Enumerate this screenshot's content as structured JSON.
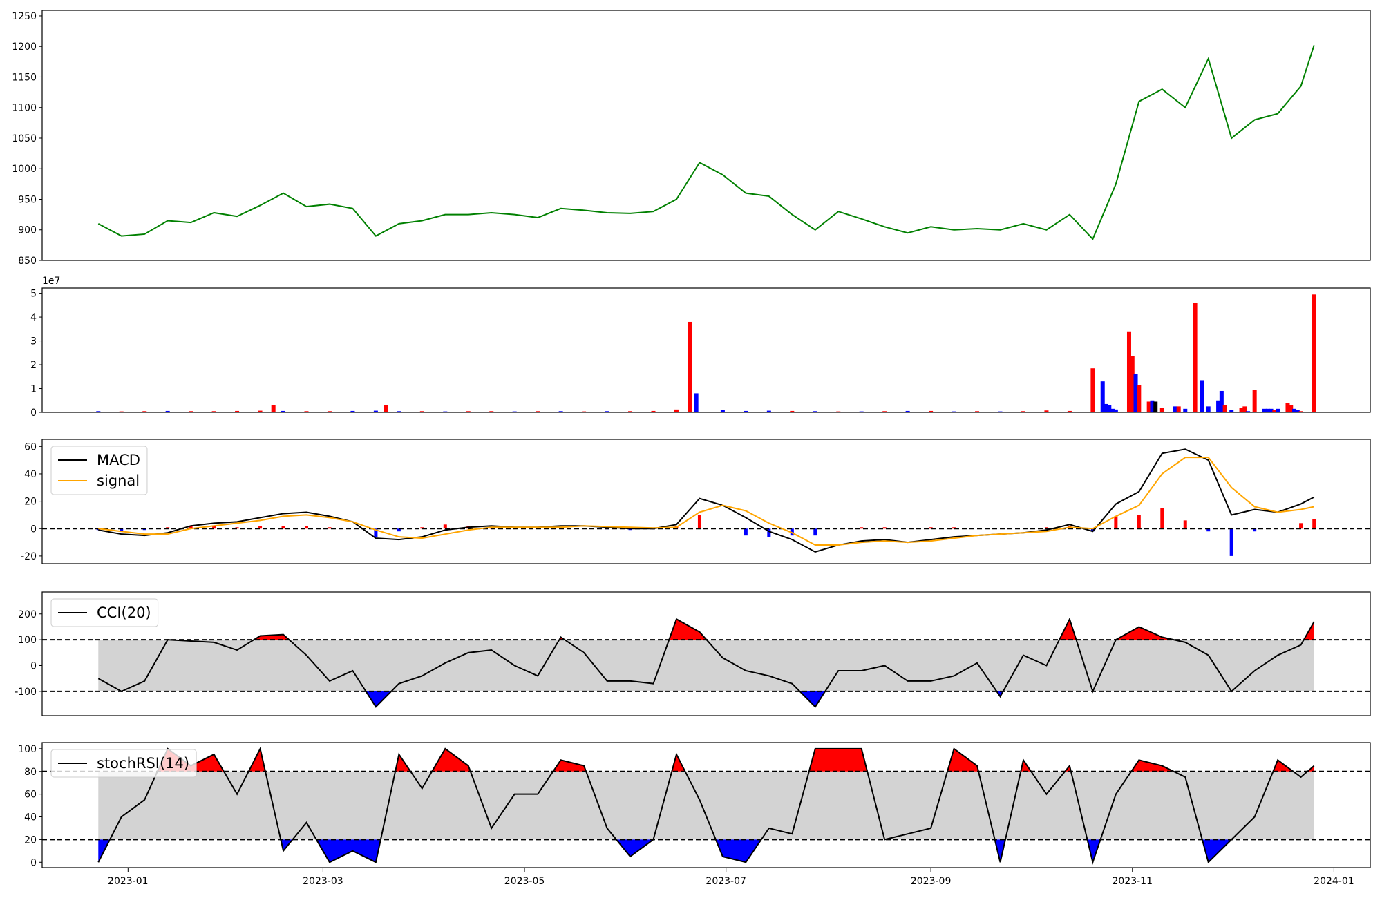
{
  "chart_data": [
    {
      "type": "line",
      "xlim": [
        "2022-12-06",
        "2024-01-12"
      ],
      "ylim": [
        850,
        1259
      ],
      "yticks": [
        850,
        900,
        950,
        1000,
        1050,
        1100,
        1150,
        1200,
        1250
      ],
      "x": [
        "2022-12-23",
        "2022-12-30",
        "2023-01-06",
        "2023-01-13",
        "2023-01-20",
        "2023-01-27",
        "2023-02-03",
        "2023-02-10",
        "2023-02-17",
        "2023-02-24",
        "2023-03-03",
        "2023-03-10",
        "2023-03-17",
        "2023-03-24",
        "2023-03-31",
        "2023-04-07",
        "2023-04-14",
        "2023-04-21",
        "2023-04-28",
        "2023-05-05",
        "2023-05-12",
        "2023-05-19",
        "2023-05-26",
        "2023-06-02",
        "2023-06-09",
        "2023-06-16",
        "2023-06-23",
        "2023-06-30",
        "2023-07-07",
        "2023-07-14",
        "2023-07-21",
        "2023-07-28",
        "2023-08-04",
        "2023-08-11",
        "2023-08-18",
        "2023-08-25",
        "2023-09-01",
        "2023-09-08",
        "2023-09-15",
        "2023-09-22",
        "2023-09-29",
        "2023-10-06",
        "2023-10-13",
        "2023-10-20",
        "2023-10-27",
        "2023-11-03",
        "2023-11-10",
        "2023-11-17",
        "2023-11-24",
        "2023-12-01",
        "2023-12-08",
        "2023-12-15",
        "2023-12-22",
        "2023-12-26"
      ],
      "series": [
        {
          "color": "#008000",
          "values": [
            910,
            890,
            893,
            915,
            912,
            928,
            922,
            940,
            960,
            938,
            942,
            935,
            890,
            910,
            915,
            925,
            925,
            928,
            925,
            920,
            935,
            932,
            928,
            927,
            930,
            950,
            1010,
            990,
            960,
            955,
            925,
            900,
            930,
            918,
            905,
            895,
            905,
            900,
            902,
            900,
            910,
            900,
            925,
            885,
            975,
            1110,
            1130,
            1100,
            1180,
            1050,
            1080,
            1090,
            1135,
            1202
          ]
        }
      ]
    },
    {
      "type": "bar",
      "xlim": [
        "2022-12-06",
        "2024-01-12"
      ],
      "ylim": [
        0,
        5.22
      ],
      "yticks": [
        0,
        1,
        2,
        3,
        4,
        5
      ],
      "y_offset": "1e7",
      "x": [
        "2022-12-23",
        "2022-12-30",
        "2023-01-06",
        "2023-01-13",
        "2023-01-20",
        "2023-01-27",
        "2023-02-03",
        "2023-02-10",
        "2023-02-14",
        "2023-02-17",
        "2023-02-24",
        "2023-03-03",
        "2023-03-10",
        "2023-03-17",
        "2023-03-20",
        "2023-03-24",
        "2023-03-31",
        "2023-04-07",
        "2023-04-14",
        "2023-04-21",
        "2023-04-28",
        "2023-05-05",
        "2023-05-12",
        "2023-05-19",
        "2023-05-26",
        "2023-06-02",
        "2023-06-09",
        "2023-06-16",
        "2023-06-20",
        "2023-06-22",
        "2023-06-30",
        "2023-07-07",
        "2023-07-14",
        "2023-07-21",
        "2023-07-28",
        "2023-08-04",
        "2023-08-11",
        "2023-08-18",
        "2023-08-25",
        "2023-09-01",
        "2023-09-08",
        "2023-09-15",
        "2023-09-22",
        "2023-09-29",
        "2023-10-06",
        "2023-10-13",
        "2023-10-20",
        "2023-10-23",
        "2023-10-24",
        "2023-10-25",
        "2023-10-26",
        "2023-10-27",
        "2023-10-31",
        "2023-11-01",
        "2023-11-02",
        "2023-11-03",
        "2023-11-06",
        "2023-11-07",
        "2023-11-08",
        "2023-11-10",
        "2023-11-14",
        "2023-11-15",
        "2023-11-17",
        "2023-11-20",
        "2023-11-22",
        "2023-11-24",
        "2023-11-27",
        "2023-11-28",
        "2023-11-29",
        "2023-12-01",
        "2023-12-04",
        "2023-12-05",
        "2023-12-06",
        "2023-12-08",
        "2023-12-11",
        "2023-12-12",
        "2023-12-13",
        "2023-12-14",
        "2023-12-15",
        "2023-12-18",
        "2023-12-19",
        "2023-12-20",
        "2023-12-21",
        "2023-12-22",
        "2023-12-26"
      ],
      "values": [
        0.05,
        0.04,
        0.05,
        0.06,
        0.05,
        0.05,
        0.06,
        0.07,
        0.3,
        0.06,
        0.05,
        0.05,
        0.06,
        0.07,
        0.3,
        0.05,
        0.05,
        0.04,
        0.05,
        0.05,
        0.04,
        0.05,
        0.05,
        0.04,
        0.05,
        0.05,
        0.06,
        0.12,
        3.8,
        0.8,
        0.1,
        0.06,
        0.07,
        0.06,
        0.05,
        0.04,
        0.04,
        0.05,
        0.06,
        0.06,
        0.04,
        0.05,
        0.04,
        0.05,
        0.08,
        0.06,
        1.85,
        1.3,
        0.35,
        0.3,
        0.15,
        0.12,
        3.4,
        2.35,
        1.6,
        1.15,
        0.45,
        0.5,
        0.45,
        0.2,
        0.25,
        0.25,
        0.15,
        4.6,
        1.35,
        0.25,
        0.5,
        0.9,
        0.3,
        0.1,
        0.2,
        0.25,
        0.05,
        0.95,
        0.15,
        0.15,
        0.15,
        0.1,
        0.15,
        0.4,
        0.3,
        0.15,
        0.1,
        0.05,
        4.95
      ],
      "colors": [
        "#0000ff",
        "#ff0000",
        "#ff0000",
        "#0000ff",
        "#ff0000",
        "#ff0000",
        "#ff0000",
        "#ff0000",
        "#ff0000",
        "#0000ff",
        "#ff0000",
        "#ff0000",
        "#0000ff",
        "#0000ff",
        "#ff0000",
        "#0000ff",
        "#ff0000",
        "#0000ff",
        "#ff0000",
        "#ff0000",
        "#0000ff",
        "#ff0000",
        "#0000ff",
        "#ff0000",
        "#0000ff",
        "#ff0000",
        "#ff0000",
        "#ff0000",
        "#ff0000",
        "#0000ff",
        "#0000ff",
        "#0000ff",
        "#0000ff",
        "#ff0000",
        "#0000ff",
        "#ff0000",
        "#0000ff",
        "#ff0000",
        "#0000ff",
        "#ff0000",
        "#0000ff",
        "#ff0000",
        "#0000ff",
        "#ff0000",
        "#ff0000",
        "#ff0000",
        "#ff0000",
        "#0000ff",
        "#0000ff",
        "#0000ff",
        "#0000ff",
        "#0000ff",
        "#ff0000",
        "#ff0000",
        "#0000ff",
        "#ff0000",
        "#ff0000",
        "#0000ff",
        "#000000",
        "#ff0000",
        "#0000ff",
        "#ff0000",
        "#0000ff",
        "#ff0000",
        "#0000ff",
        "#0000ff",
        "#0000ff",
        "#0000ff",
        "#ff0000",
        "#0000ff",
        "#ff0000",
        "#ff0000",
        "#0000ff",
        "#ff0000",
        "#0000ff",
        "#0000ff",
        "#0000ff",
        "#ff0000",
        "#0000ff",
        "#ff0000",
        "#ff0000",
        "#0000ff",
        "#0000ff",
        "#ff0000",
        "#ff0000"
      ]
    },
    {
      "type": "line",
      "xlim": [
        "2022-12-06",
        "2024-01-12"
      ],
      "ylim": [
        -25.6,
        65.2
      ],
      "yticks": [
        -20,
        0,
        20,
        40,
        60
      ],
      "hlines": [
        0
      ],
      "legend": "upper left",
      "x": [
        "2022-12-23",
        "2022-12-30",
        "2023-01-06",
        "2023-01-13",
        "2023-01-20",
        "2023-01-27",
        "2023-02-03",
        "2023-02-10",
        "2023-02-17",
        "2023-02-24",
        "2023-03-03",
        "2023-03-10",
        "2023-03-17",
        "2023-03-24",
        "2023-03-31",
        "2023-04-07",
        "2023-04-14",
        "2023-04-21",
        "2023-04-28",
        "2023-05-05",
        "2023-05-12",
        "2023-05-19",
        "2023-05-26",
        "2023-06-02",
        "2023-06-09",
        "2023-06-16",
        "2023-06-23",
        "2023-06-30",
        "2023-07-07",
        "2023-07-14",
        "2023-07-21",
        "2023-07-28",
        "2023-08-04",
        "2023-08-11",
        "2023-08-18",
        "2023-08-25",
        "2023-09-01",
        "2023-09-08",
        "2023-09-15",
        "2023-09-22",
        "2023-09-29",
        "2023-10-06",
        "2023-10-13",
        "2023-10-20",
        "2023-10-27",
        "2023-11-03",
        "2023-11-10",
        "2023-11-17",
        "2023-11-24",
        "2023-12-01",
        "2023-12-08",
        "2023-12-15",
        "2023-12-22",
        "2023-12-26"
      ],
      "histogram": {
        "positive_color": "#ff0000",
        "negative_color": "#0000ff",
        "values": [
          -1,
          -2,
          -1,
          1,
          2,
          2,
          1,
          2,
          2,
          2,
          1,
          0,
          -6,
          -2,
          1,
          3,
          2,
          1,
          0,
          0,
          1,
          0,
          -0.5,
          -1,
          -0.5,
          2,
          10,
          0,
          -5,
          -6,
          -5,
          -5,
          0,
          1,
          1,
          0,
          1,
          1,
          0,
          0,
          0,
          1,
          2,
          -2,
          9,
          10,
          15,
          6,
          -2,
          -20,
          -2,
          0,
          4,
          7
        ]
      },
      "series": [
        {
          "name": "MACD",
          "color": "#000000",
          "values": [
            -1,
            -4,
            -5,
            -3,
            2,
            4,
            5,
            8,
            11,
            12,
            9,
            5,
            -7,
            -8,
            -6,
            -1,
            1,
            2,
            1,
            1,
            2,
            2,
            1,
            0,
            0,
            3,
            22,
            17,
            8,
            -2,
            -8,
            -17,
            -12,
            -9,
            -8,
            -10,
            -8,
            -6,
            -5,
            -4,
            -3,
            -1,
            3,
            -2,
            18,
            27,
            55,
            58,
            50,
            10,
            14,
            12,
            18,
            23
          ]
        },
        {
          "name": "signal",
          "color": "#ffa500",
          "values": [
            0,
            -2,
            -4,
            -4,
            0,
            2,
            4,
            6,
            9,
            10,
            8,
            5,
            -1,
            -6,
            -7,
            -4,
            -1,
            1,
            1,
            1,
            1,
            2,
            1.5,
            1,
            0.5,
            1,
            12,
            17,
            13,
            4,
            -3,
            -12,
            -12,
            -10,
            -9,
            -10,
            -9,
            -7,
            -5,
            -4,
            -3,
            -2,
            1,
            0,
            9,
            17,
            40,
            52,
            52,
            30,
            16,
            12,
            14,
            16
          ]
        }
      ]
    },
    {
      "type": "line",
      "xlim": [
        "2022-12-06",
        "2024-01-12"
      ],
      "ylim": [
        -194,
        285
      ],
      "yticks": [
        -100,
        0,
        100,
        200
      ],
      "bands": [
        -100,
        100
      ],
      "band_color": "#d3d3d3",
      "above_color": "#ff0000",
      "below_color": "#0000ff",
      "legend": "upper left",
      "x": [
        "2022-12-23",
        "2022-12-30",
        "2023-01-06",
        "2023-01-13",
        "2023-01-20",
        "2023-01-27",
        "2023-02-03",
        "2023-02-10",
        "2023-02-17",
        "2023-02-24",
        "2023-03-03",
        "2023-03-10",
        "2023-03-17",
        "2023-03-24",
        "2023-03-31",
        "2023-04-07",
        "2023-04-14",
        "2023-04-21",
        "2023-04-28",
        "2023-05-05",
        "2023-05-12",
        "2023-05-19",
        "2023-05-26",
        "2023-06-02",
        "2023-06-09",
        "2023-06-16",
        "2023-06-23",
        "2023-06-30",
        "2023-07-07",
        "2023-07-14",
        "2023-07-21",
        "2023-07-28",
        "2023-08-04",
        "2023-08-11",
        "2023-08-18",
        "2023-08-25",
        "2023-09-01",
        "2023-09-08",
        "2023-09-15",
        "2023-09-22",
        "2023-09-29",
        "2023-10-06",
        "2023-10-13",
        "2023-10-20",
        "2023-10-27",
        "2023-11-03",
        "2023-11-10",
        "2023-11-17",
        "2023-11-24",
        "2023-12-01",
        "2023-12-08",
        "2023-12-15",
        "2023-12-22",
        "2023-12-26"
      ],
      "series": [
        {
          "name": "CCI(20)",
          "color": "#000000",
          "values": [
            -50,
            -100,
            -60,
            100,
            95,
            90,
            60,
            115,
            120,
            40,
            -60,
            -20,
            -160,
            -70,
            -40,
            10,
            50,
            60,
            0,
            -40,
            110,
            50,
            -60,
            -60,
            -70,
            180,
            130,
            30,
            -20,
            -40,
            -70,
            -160,
            -20,
            -20,
            0,
            -60,
            -60,
            -40,
            10,
            -120,
            40,
            0,
            180,
            -100,
            100,
            150,
            110,
            90,
            40,
            -100,
            -20,
            40,
            80,
            170
          ]
        }
      ]
    },
    {
      "type": "line",
      "xlim": [
        "2022-12-06",
        "2024-01-12"
      ],
      "ylim": [
        -4.7,
        105.4
      ],
      "yticks": [
        0,
        20,
        40,
        60,
        80,
        100
      ],
      "bands": [
        20,
        80
      ],
      "band_color": "#d3d3d3",
      "above_color": "#ff0000",
      "below_color": "#0000ff",
      "legend": "upper left",
      "xticks": [
        {
          "value": "2023-01-01",
          "label": "2023-01"
        },
        {
          "value": "2023-03-01",
          "label": "2023-03"
        },
        {
          "value": "2023-05-01",
          "label": "2023-05"
        },
        {
          "value": "2023-07-01",
          "label": "2023-07"
        },
        {
          "value": "2023-09-01",
          "label": "2023-09"
        },
        {
          "value": "2023-11-01",
          "label": "2023-11"
        },
        {
          "value": "2024-01-01",
          "label": "2024-01"
        }
      ],
      "x": [
        "2022-12-23",
        "2022-12-30",
        "2023-01-06",
        "2023-01-13",
        "2023-01-20",
        "2023-01-27",
        "2023-02-03",
        "2023-02-10",
        "2023-02-17",
        "2023-02-24",
        "2023-03-03",
        "2023-03-10",
        "2023-03-17",
        "2023-03-24",
        "2023-03-31",
        "2023-04-07",
        "2023-04-14",
        "2023-04-21",
        "2023-04-28",
        "2023-05-05",
        "2023-05-12",
        "2023-05-19",
        "2023-05-26",
        "2023-06-02",
        "2023-06-09",
        "2023-06-16",
        "2023-06-23",
        "2023-06-30",
        "2023-07-07",
        "2023-07-14",
        "2023-07-21",
        "2023-07-28",
        "2023-08-04",
        "2023-08-11",
        "2023-08-18",
        "2023-08-25",
        "2023-09-01",
        "2023-09-08",
        "2023-09-15",
        "2023-09-22",
        "2023-09-29",
        "2023-10-06",
        "2023-10-13",
        "2023-10-20",
        "2023-10-27",
        "2023-11-03",
        "2023-11-10",
        "2023-11-17",
        "2023-11-24",
        "2023-12-01",
        "2023-12-08",
        "2023-12-15",
        "2023-12-22",
        "2023-12-26"
      ],
      "series": [
        {
          "name": "stochRSI(14)",
          "color": "#000000",
          "values": [
            0,
            40,
            55,
            100,
            85,
            95,
            60,
            100,
            10,
            35,
            0,
            10,
            0,
            95,
            65,
            100,
            85,
            30,
            60,
            60,
            90,
            85,
            30,
            5,
            20,
            95,
            55,
            5,
            0,
            30,
            25,
            100,
            100,
            100,
            20,
            25,
            30,
            100,
            85,
            0,
            90,
            60,
            85,
            0,
            60,
            90,
            85,
            75,
            0,
            20,
            40,
            90,
            75,
            85
          ]
        }
      ]
    }
  ]
}
